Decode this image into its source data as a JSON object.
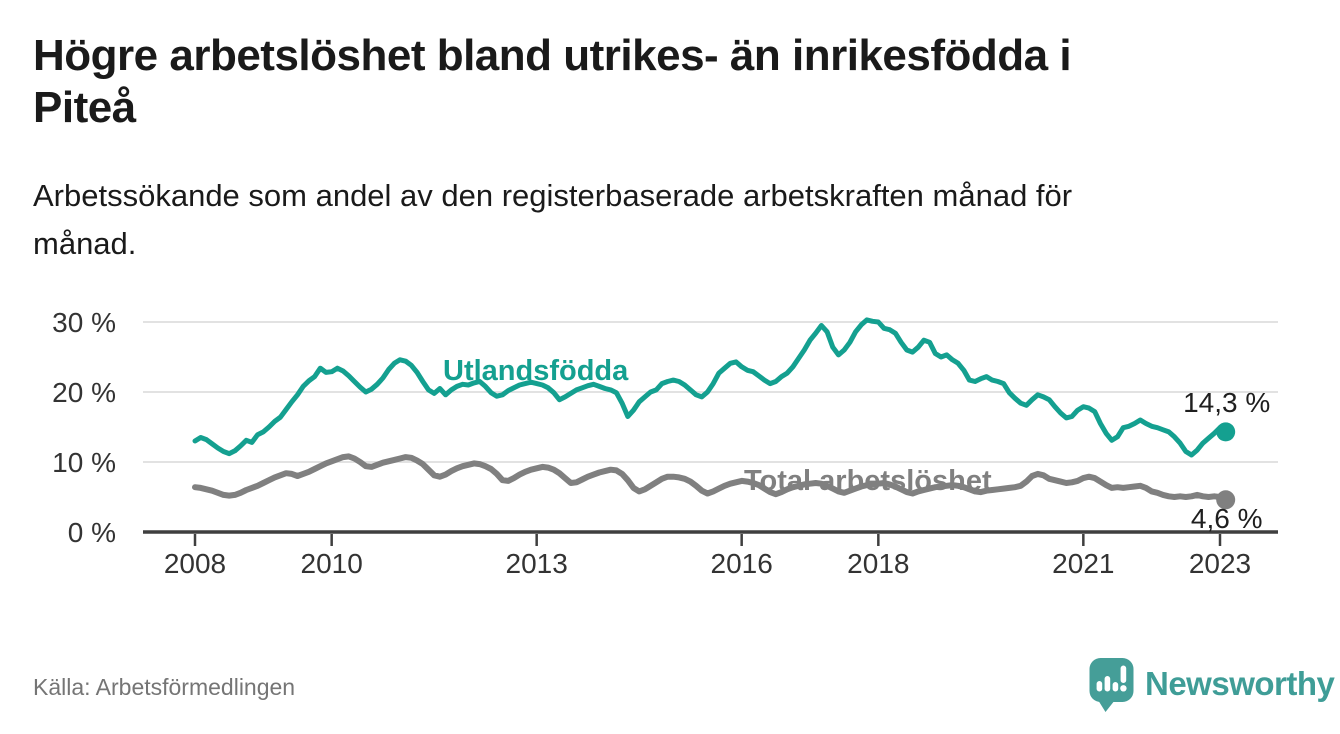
{
  "header": {
    "title": "Högre arbetslöshet bland utrikes- än inrikesfödda i Piteå",
    "title_lines": [
      "Högre arbetslöshet bland utrikes- än inrikesfödda i",
      "Piteå"
    ],
    "subtitle": "Arbetssökande som andel av den registerbaserade arbetskraften månad för månad.",
    "subtitle_lines": [
      "Arbetssökande som andel av den registerbaserade arbetskraften månad för",
      "månad."
    ]
  },
  "footer": {
    "source": "Källa: Arbetsförmedlingen",
    "logo_text": "Newsworthy",
    "logo_color": "#459e98"
  },
  "chart_data": {
    "type": "line",
    "unit": "%",
    "frequency": "monthly",
    "start": "2008-01",
    "end": "2023-02",
    "grid": true,
    "legend_position": "inline-labels",
    "ylim": [
      0,
      33
    ],
    "y_ticks": [
      0,
      10,
      20,
      30
    ],
    "y_tick_labels": [
      "0 %",
      "10 %",
      "20 %",
      "30 %"
    ],
    "x_ticks": [
      2008,
      2010,
      2013,
      2016,
      2018,
      2021,
      2023
    ],
    "x_tick_labels": [
      "2008",
      "2010",
      "2013",
      "2016",
      "2018",
      "2021",
      "2023"
    ],
    "colors": {
      "utlandsfodda": "#14a090",
      "total": "#808080",
      "grid": "#d9d9d9",
      "axis": "#3f3f3f",
      "tick_text": "#333333",
      "value_text": "#1f1f1f"
    },
    "series": [
      {
        "name": "Utlandsfödda",
        "color": "#14a090",
        "end_label": "14,3 %",
        "last_value": 14.3,
        "values": [
          13.0,
          13.5,
          13.2,
          12.6,
          12.0,
          11.5,
          11.2,
          11.6,
          12.3,
          13.1,
          12.8,
          13.9,
          14.3,
          15.0,
          15.8,
          16.4,
          17.5,
          18.6,
          19.6,
          20.8,
          21.6,
          22.2,
          23.4,
          22.8,
          22.9,
          23.4,
          23.0,
          22.3,
          21.5,
          20.7,
          20.0,
          20.4,
          21.1,
          22.0,
          23.2,
          24.1,
          24.6,
          24.4,
          23.8,
          22.8,
          21.5,
          20.3,
          19.8,
          20.5,
          19.6,
          20.3,
          20.8,
          21.1,
          21.0,
          21.3,
          21.5,
          20.8,
          19.9,
          19.4,
          19.6,
          20.2,
          20.6,
          21.0,
          21.2,
          21.4,
          21.2,
          21.0,
          20.6,
          19.9,
          18.9,
          19.3,
          19.8,
          20.3,
          20.6,
          20.9,
          21.1,
          20.8,
          20.5,
          20.3,
          19.9,
          18.4,
          16.5,
          17.4,
          18.6,
          19.3,
          20.0,
          20.3,
          21.2,
          21.5,
          21.7,
          21.5,
          21.0,
          20.3,
          19.6,
          19.3,
          20.0,
          21.2,
          22.7,
          23.4,
          24.1,
          24.3,
          23.6,
          23.1,
          22.9,
          22.3,
          21.7,
          21.2,
          21.5,
          22.2,
          22.7,
          23.6,
          24.8,
          26.0,
          27.4,
          28.4,
          29.5,
          28.6,
          26.4,
          25.3,
          26.0,
          27.1,
          28.6,
          29.6,
          30.3,
          30.1,
          30.0,
          29.1,
          28.9,
          28.4,
          27.1,
          26.0,
          25.7,
          26.4,
          27.4,
          27.1,
          25.5,
          25.0,
          25.3,
          24.6,
          24.1,
          23.1,
          21.7,
          21.5,
          21.9,
          22.2,
          21.7,
          21.5,
          21.2,
          19.9,
          19.1,
          18.4,
          18.1,
          18.9,
          19.6,
          19.3,
          18.9,
          17.9,
          17.0,
          16.3,
          16.5,
          17.4,
          17.9,
          17.7,
          17.2,
          15.5,
          14.1,
          13.1,
          13.6,
          14.9,
          15.1,
          15.5,
          16.0,
          15.5,
          15.1,
          14.9,
          14.6,
          14.3,
          13.6,
          12.7,
          11.5,
          11.0,
          11.7,
          12.7,
          13.4,
          14.1,
          14.9,
          14.3
        ]
      },
      {
        "name": "Total arbetslöshet",
        "color": "#808080",
        "end_label": "4,6 %",
        "last_value": 4.6,
        "values": [
          6.4,
          6.3,
          6.1,
          5.9,
          5.6,
          5.3,
          5.2,
          5.3,
          5.6,
          6.0,
          6.3,
          6.6,
          7.0,
          7.4,
          7.8,
          8.1,
          8.4,
          8.3,
          8.0,
          8.3,
          8.6,
          9.0,
          9.4,
          9.8,
          10.1,
          10.4,
          10.7,
          10.8,
          10.5,
          10.0,
          9.4,
          9.3,
          9.6,
          9.9,
          10.1,
          10.3,
          10.5,
          10.7,
          10.6,
          10.2,
          9.7,
          8.9,
          8.1,
          7.9,
          8.2,
          8.7,
          9.1,
          9.4,
          9.6,
          9.8,
          9.7,
          9.4,
          9.0,
          8.3,
          7.4,
          7.3,
          7.7,
          8.2,
          8.6,
          8.9,
          9.1,
          9.3,
          9.2,
          8.9,
          8.4,
          7.7,
          7.0,
          7.1,
          7.5,
          7.9,
          8.2,
          8.5,
          8.7,
          8.9,
          8.8,
          8.3,
          7.4,
          6.3,
          5.8,
          6.1,
          6.6,
          7.1,
          7.6,
          7.9,
          7.9,
          7.8,
          7.6,
          7.2,
          6.6,
          5.9,
          5.5,
          5.8,
          6.2,
          6.6,
          6.9,
          7.1,
          7.3,
          7.2,
          7.0,
          6.7,
          6.2,
          5.7,
          5.4,
          5.7,
          6.1,
          6.4,
          6.6,
          6.8,
          6.9,
          7.0,
          6.9,
          6.6,
          6.2,
          5.8,
          5.6,
          5.9,
          6.2,
          6.5,
          6.7,
          6.8,
          6.9,
          7.0,
          6.8,
          6.5,
          6.1,
          5.7,
          5.5,
          5.8,
          6.0,
          6.2,
          6.4,
          6.5,
          6.6,
          6.7,
          6.6,
          6.4,
          6.1,
          5.8,
          5.7,
          5.9,
          6.0,
          6.1,
          6.2,
          6.3,
          6.4,
          6.6,
          7.2,
          8.0,
          8.3,
          8.1,
          7.6,
          7.4,
          7.2,
          7.0,
          7.1,
          7.3,
          7.7,
          7.9,
          7.7,
          7.2,
          6.7,
          6.3,
          6.4,
          6.3,
          6.4,
          6.5,
          6.6,
          6.3,
          5.8,
          5.6,
          5.3,
          5.1,
          5.0,
          5.1,
          5.0,
          5.1,
          5.3,
          5.1,
          5.0,
          5.1,
          5.0,
          4.6
        ]
      }
    ]
  }
}
